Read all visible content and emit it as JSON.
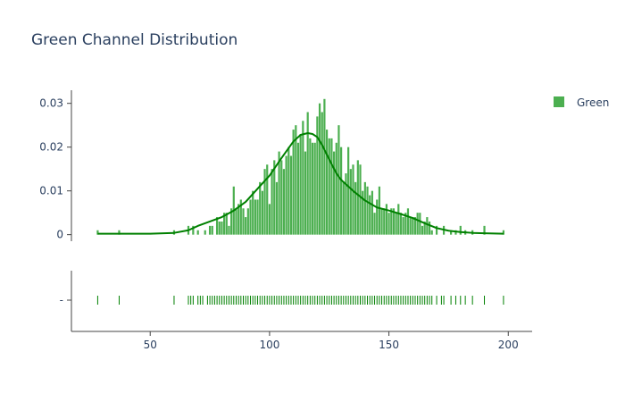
{
  "chart_data": {
    "type": "bar",
    "title": "Green Channel Distribution",
    "xlabel": "",
    "ylabel": "",
    "xlim": [
      17,
      210
    ],
    "ylim": [
      -0.0015,
      0.033
    ],
    "x_ticks": [
      50,
      100,
      150,
      200
    ],
    "x_tick_labels": [
      "50",
      "100",
      "150",
      "200"
    ],
    "y_ticks": [
      0,
      0.01,
      0.02,
      0.03
    ],
    "y_tick_labels": [
      "0",
      "0.01",
      "0.02",
      "0.03"
    ],
    "rug_tick_label": "-",
    "grid": false,
    "legend": {
      "position": "top-right",
      "entries": [
        {
          "name": "Green",
          "color": "#4caf50"
        }
      ]
    },
    "colors": {
      "bar": "#4caf50",
      "curve": "#008000",
      "rug": "#008000",
      "axis": "#444444",
      "text": "#2a3f5f"
    },
    "series": [
      {
        "name": "Green",
        "kind": "histogram",
        "x": [
          28,
          37,
          60,
          66,
          68,
          70,
          73,
          75,
          76,
          78,
          79,
          80,
          81,
          82,
          83,
          84,
          85,
          86,
          87,
          88,
          89,
          90,
          91,
          92,
          93,
          94,
          95,
          96,
          97,
          98,
          99,
          100,
          101,
          102,
          103,
          104,
          105,
          106,
          107,
          108,
          109,
          110,
          111,
          112,
          113,
          114,
          115,
          116,
          117,
          118,
          119,
          120,
          121,
          122,
          123,
          124,
          125,
          126,
          127,
          128,
          129,
          130,
          131,
          132,
          133,
          134,
          135,
          136,
          137,
          138,
          139,
          140,
          141,
          142,
          143,
          144,
          145,
          146,
          147,
          148,
          149,
          150,
          151,
          152,
          153,
          154,
          155,
          156,
          157,
          158,
          159,
          160,
          161,
          162,
          163,
          164,
          165,
          166,
          167,
          168,
          170,
          173,
          176,
          178,
          180,
          182,
          185,
          190,
          198
        ],
        "values": [
          0.001,
          0.001,
          0.001,
          0.002,
          0.002,
          0.001,
          0.001,
          0.002,
          0.002,
          0.004,
          0.003,
          0.003,
          0.005,
          0.005,
          0.002,
          0.006,
          0.011,
          0.006,
          0.007,
          0.008,
          0.006,
          0.004,
          0.006,
          0.008,
          0.01,
          0.008,
          0.008,
          0.012,
          0.01,
          0.015,
          0.016,
          0.007,
          0.015,
          0.017,
          0.012,
          0.019,
          0.017,
          0.015,
          0.018,
          0.02,
          0.018,
          0.024,
          0.025,
          0.021,
          0.023,
          0.026,
          0.019,
          0.028,
          0.022,
          0.021,
          0.021,
          0.027,
          0.03,
          0.028,
          0.031,
          0.024,
          0.022,
          0.022,
          0.019,
          0.021,
          0.025,
          0.02,
          0.012,
          0.014,
          0.02,
          0.015,
          0.016,
          0.012,
          0.017,
          0.016,
          0.01,
          0.012,
          0.011,
          0.009,
          0.01,
          0.005,
          0.008,
          0.011,
          0.006,
          0.006,
          0.007,
          0.005,
          0.006,
          0.006,
          0.005,
          0.007,
          0.005,
          0.004,
          0.005,
          0.006,
          0.004,
          0.004,
          0.004,
          0.005,
          0.005,
          0.002,
          0.003,
          0.004,
          0.003,
          0.001,
          0.002,
          0.002,
          0.001,
          0.001,
          0.002,
          0.001,
          0.001,
          0.002,
          0.001
        ]
      },
      {
        "name": "Green",
        "kind": "density",
        "x": [
          28,
          50,
          60,
          66,
          70,
          75,
          80,
          85,
          90,
          95,
          100,
          105,
          110,
          113,
          116,
          118,
          120,
          122,
          125,
          128,
          130,
          135,
          140,
          145,
          150,
          155,
          160,
          165,
          170,
          175,
          180,
          185,
          190,
          198
        ],
        "values": [
          0.0002,
          0.0002,
          0.0004,
          0.001,
          0.002,
          0.003,
          0.004,
          0.0055,
          0.0075,
          0.0105,
          0.0135,
          0.0175,
          0.0213,
          0.0228,
          0.0232,
          0.023,
          0.0223,
          0.0205,
          0.0172,
          0.014,
          0.0125,
          0.01,
          0.0078,
          0.0062,
          0.0055,
          0.0047,
          0.0038,
          0.0026,
          0.0015,
          0.0009,
          0.0006,
          0.0004,
          0.0003,
          0.0002
        ]
      },
      {
        "name": "Green",
        "kind": "rug",
        "x": [
          28,
          37,
          60,
          66,
          67,
          68,
          70,
          71,
          72,
          74,
          75,
          76,
          77,
          78,
          79,
          80,
          81,
          82,
          83,
          84,
          85,
          86,
          87,
          88,
          89,
          90,
          91,
          92,
          93,
          94,
          95,
          96,
          97,
          98,
          99,
          100,
          101,
          102,
          103,
          104,
          105,
          106,
          107,
          108,
          109,
          110,
          111,
          112,
          113,
          114,
          115,
          116,
          117,
          118,
          119,
          120,
          121,
          122,
          123,
          124,
          125,
          126,
          127,
          128,
          129,
          130,
          131,
          132,
          133,
          134,
          135,
          136,
          137,
          138,
          139,
          140,
          141,
          142,
          143,
          144,
          145,
          146,
          147,
          148,
          149,
          150,
          151,
          152,
          153,
          154,
          155,
          156,
          157,
          158,
          159,
          160,
          161,
          162,
          163,
          164,
          165,
          166,
          167,
          168,
          170,
          172,
          173,
          176,
          178,
          180,
          182,
          185,
          190,
          198
        ]
      }
    ]
  }
}
